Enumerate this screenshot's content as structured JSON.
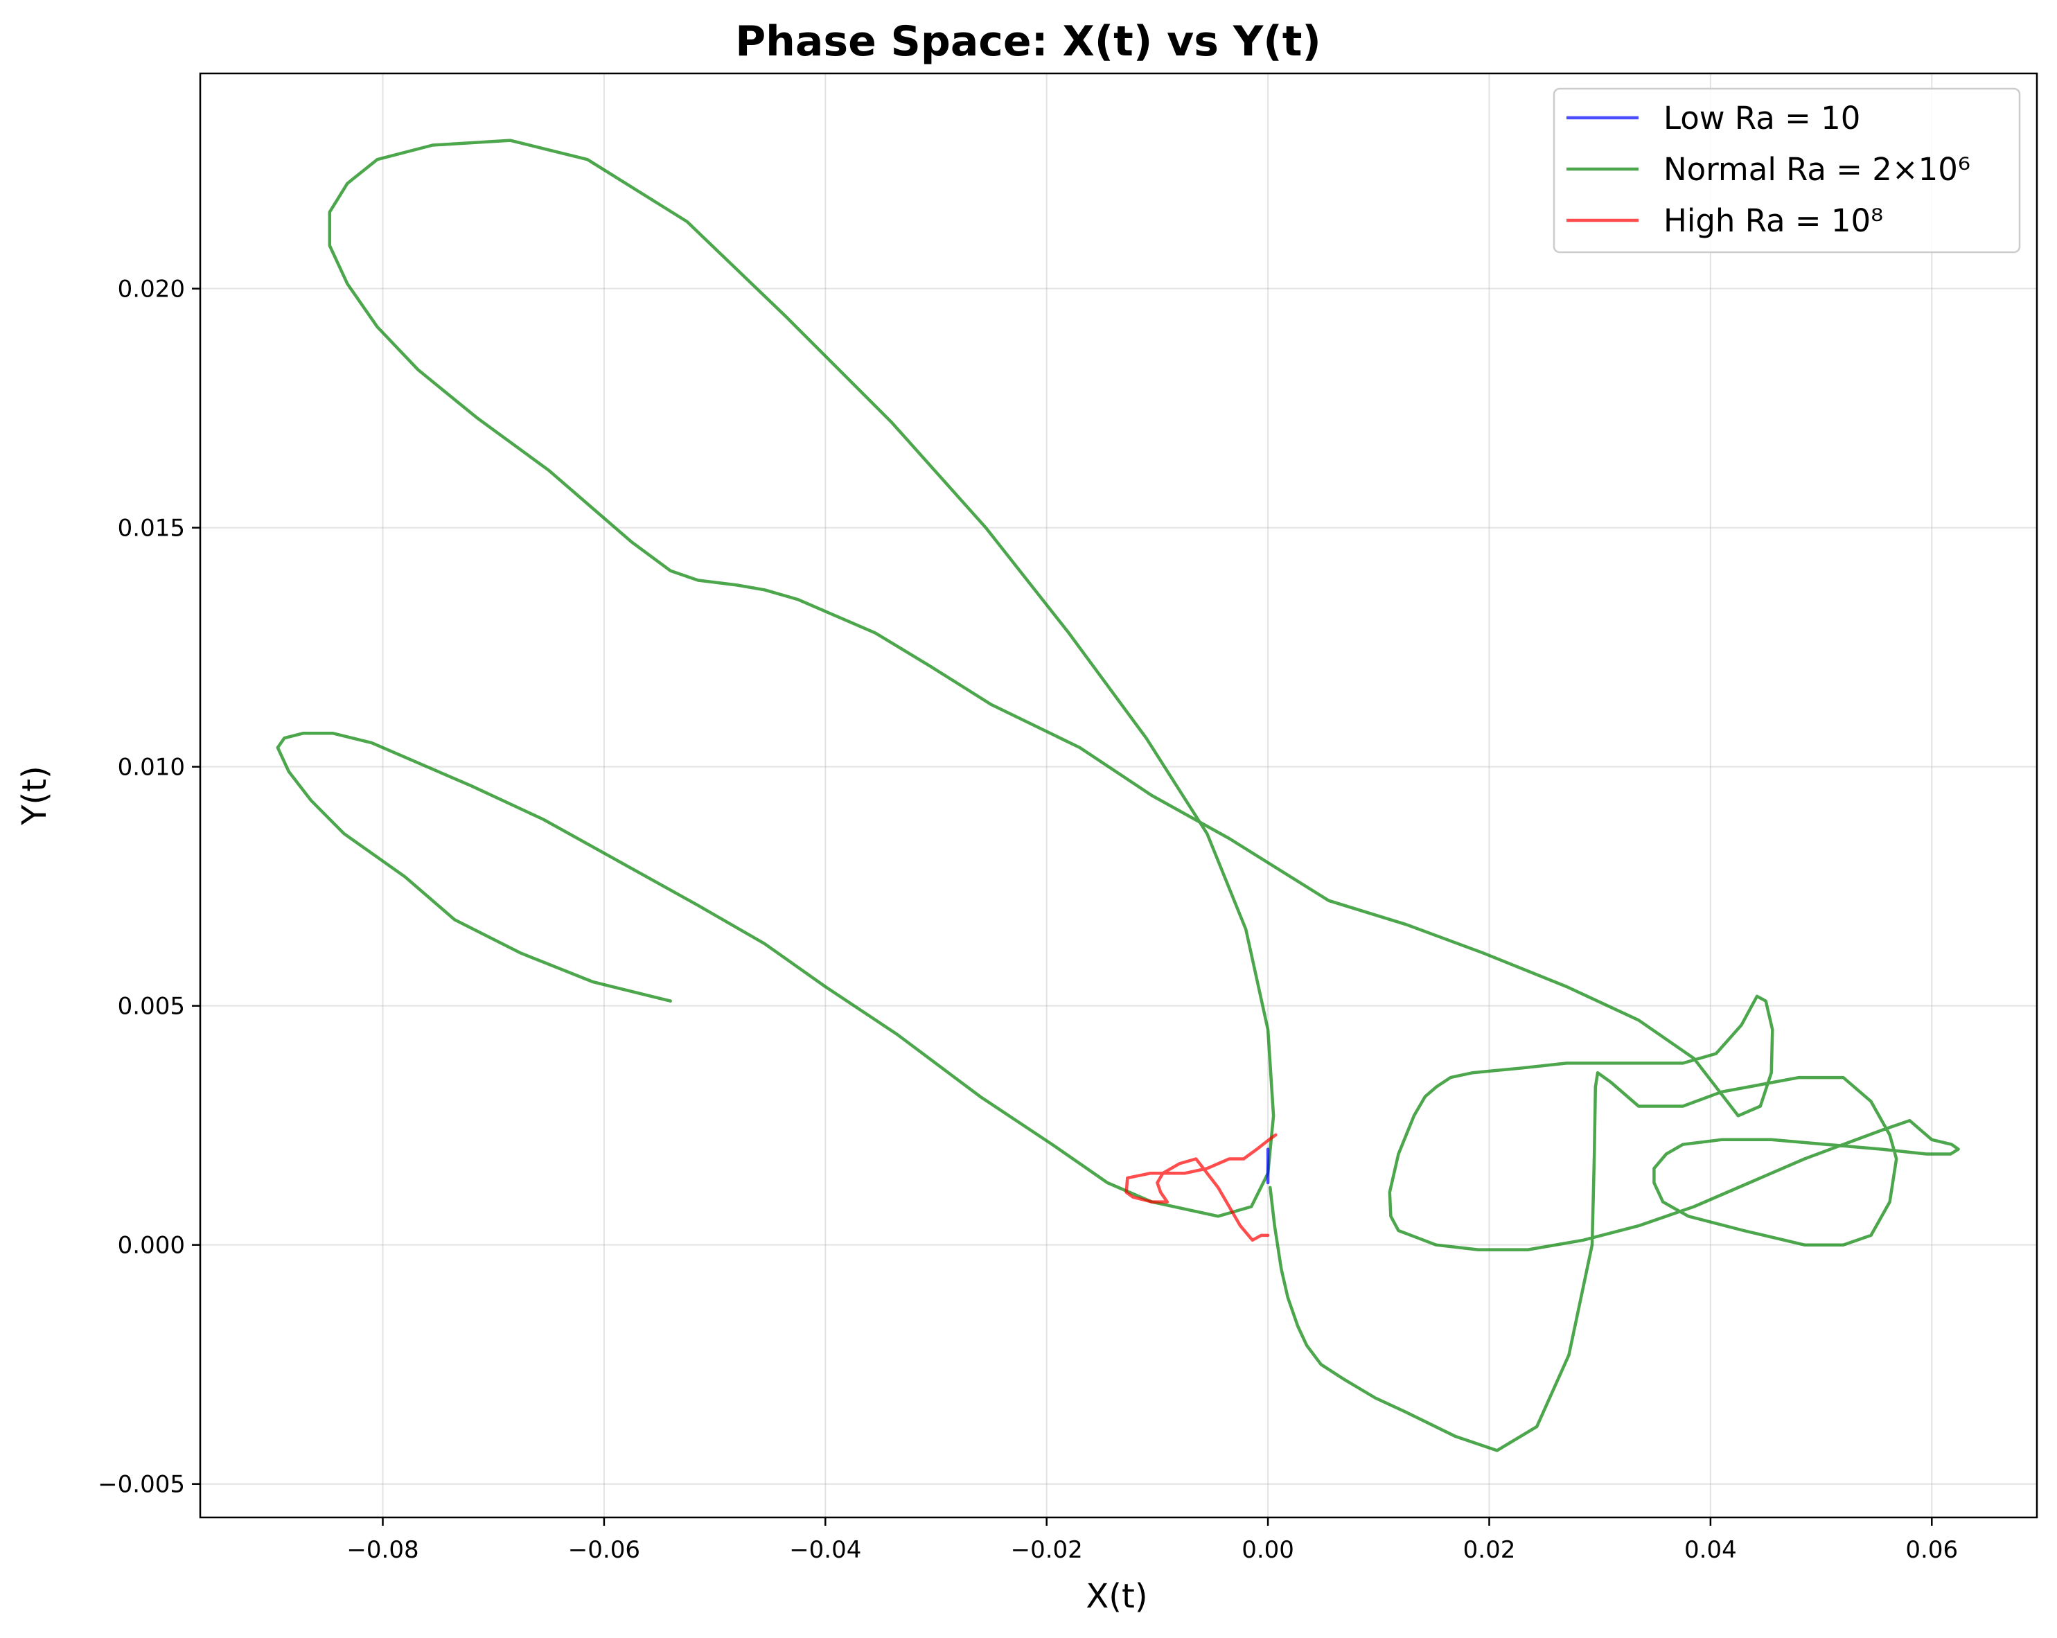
{
  "chart_data": {
    "type": "line",
    "title": "Phase Space: X(t) vs Y(t)",
    "xlabel": "X(t)",
    "ylabel": "Y(t)",
    "xlim": [
      -0.0965,
      0.0695
    ],
    "ylim": [
      -0.0057,
      0.0245
    ],
    "xticks": [
      -0.08,
      -0.06,
      -0.04,
      -0.02,
      0.0,
      0.02,
      0.04,
      0.06
    ],
    "xtick_labels": [
      "−0.08",
      "−0.06",
      "−0.04",
      "−0.02",
      "0.00",
      "0.02",
      "0.04",
      "0.06"
    ],
    "yticks": [
      -0.005,
      0.0,
      0.005,
      0.01,
      0.015,
      0.02
    ],
    "ytick_labels": [
      "−0.005",
      "0.000",
      "0.005",
      "0.010",
      "0.015",
      "0.020"
    ],
    "grid": true,
    "legend_position": "top-right",
    "series": [
      {
        "name": "Low Ra = 10",
        "color": "#0000ff",
        "opacity": 0.7,
        "points": [
          [
            0.0,
            0.002
          ],
          [
            0.0,
            0.0016
          ],
          [
            0.0,
            0.0013
          ]
        ]
      },
      {
        "name": "Normal Ra = 2×10⁶",
        "color": "#008000",
        "opacity": 0.7,
        "points": [
          [
            -0.054,
            0.0051
          ],
          [
            -0.061,
            0.0055
          ],
          [
            -0.0675,
            0.0061
          ],
          [
            -0.0735,
            0.0068
          ],
          [
            -0.078,
            0.0077
          ],
          [
            -0.0835,
            0.0086
          ],
          [
            -0.0865,
            0.0093
          ],
          [
            -0.0885,
            0.0099
          ],
          [
            -0.0895,
            0.0104
          ],
          [
            -0.0889,
            0.0106
          ],
          [
            -0.0872,
            0.0107
          ],
          [
            -0.0845,
            0.0107
          ],
          [
            -0.081,
            0.0105
          ],
          [
            -0.077,
            0.0101
          ],
          [
            -0.072,
            0.0096
          ],
          [
            -0.0655,
            0.0089
          ],
          [
            -0.0585,
            0.008
          ],
          [
            -0.0515,
            0.0071
          ],
          [
            -0.0455,
            0.0063
          ],
          [
            -0.04,
            0.0054
          ],
          [
            -0.0335,
            0.0044
          ],
          [
            -0.026,
            0.0031
          ],
          [
            -0.0195,
            0.0021
          ],
          [
            -0.0145,
            0.0013
          ],
          [
            -0.0105,
            0.0009
          ],
          [
            -0.0045,
            0.0006
          ],
          [
            -0.0015,
            0.0008
          ],
          [
            0.0,
            0.0015
          ],
          [
            0.0005,
            0.0027
          ],
          [
            0.0,
            0.0045
          ],
          [
            -0.002,
            0.0066
          ],
          [
            -0.0055,
            0.0086
          ],
          [
            -0.011,
            0.0106
          ],
          [
            -0.018,
            0.0128
          ],
          [
            -0.0255,
            0.015
          ],
          [
            -0.034,
            0.0172
          ],
          [
            -0.0435,
            0.0194
          ],
          [
            -0.0525,
            0.0214
          ],
          [
            -0.0615,
            0.0227
          ],
          [
            -0.0685,
            0.0231
          ],
          [
            -0.0755,
            0.023
          ],
          [
            -0.0805,
            0.0227
          ],
          [
            -0.0832,
            0.0222
          ],
          [
            -0.0848,
            0.0216
          ],
          [
            -0.0848,
            0.0209
          ],
          [
            -0.0832,
            0.0201
          ],
          [
            -0.0805,
            0.0192
          ],
          [
            -0.0768,
            0.0183
          ],
          [
            -0.0715,
            0.0173
          ],
          [
            -0.065,
            0.0162
          ],
          [
            -0.061,
            0.0154
          ],
          [
            -0.0575,
            0.0147
          ],
          [
            -0.054,
            0.0141
          ],
          [
            -0.0515,
            0.0139
          ],
          [
            -0.048,
            0.0138
          ],
          [
            -0.0455,
            0.0137
          ],
          [
            -0.0425,
            0.0135
          ],
          [
            -0.0395,
            0.0132
          ],
          [
            -0.0355,
            0.0128
          ],
          [
            -0.0305,
            0.0121
          ],
          [
            -0.025,
            0.0113
          ],
          [
            -0.017,
            0.0104
          ],
          [
            -0.0105,
            0.0094
          ],
          [
            -0.0035,
            0.0085
          ],
          [
            0.0055,
            0.0072
          ],
          [
            0.0125,
            0.0067
          ],
          [
            0.0195,
            0.0061
          ],
          [
            0.027,
            0.0054
          ],
          [
            0.0335,
            0.0047
          ],
          [
            0.0385,
            0.0039
          ],
          [
            0.0425,
            0.0027
          ],
          [
            0.0445,
            0.0029
          ],
          [
            0.0455,
            0.0036
          ],
          [
            0.0456,
            0.0045
          ],
          [
            0.045,
            0.0051
          ],
          [
            0.0442,
            0.0052
          ],
          [
            0.0428,
            0.0046
          ],
          [
            0.0405,
            0.004
          ],
          [
            0.0375,
            0.0038
          ],
          [
            0.0325,
            0.0038
          ],
          [
            0.027,
            0.0038
          ],
          [
            0.023,
            0.0037
          ],
          [
            0.0185,
            0.0036
          ],
          [
            0.0165,
            0.0035
          ],
          [
            0.0152,
            0.0033
          ],
          [
            0.0142,
            0.0031
          ],
          [
            0.0132,
            0.0027
          ],
          [
            0.0118,
            0.0019
          ],
          [
            0.011,
            0.0011
          ],
          [
            0.0111,
            0.0006
          ],
          [
            0.0118,
            0.0003
          ],
          [
            0.0152,
            0.0
          ],
          [
            0.019,
            -0.0001
          ],
          [
            0.0235,
            -0.0001
          ],
          [
            0.0285,
            0.0001
          ],
          [
            0.0335,
            0.0004
          ],
          [
            0.0385,
            0.0008
          ],
          [
            0.0435,
            0.0013
          ],
          [
            0.0485,
            0.0018
          ],
          [
            0.052,
            0.0021
          ],
          [
            0.0555,
            0.0024
          ],
          [
            0.058,
            0.0026
          ],
          [
            0.06,
            0.0022
          ],
          [
            0.0618,
            0.0021
          ],
          [
            0.0624,
            0.002
          ],
          [
            0.0617,
            0.0019
          ],
          [
            0.0595,
            0.0019
          ],
          [
            0.0555,
            0.002
          ],
          [
            0.0505,
            0.0021
          ],
          [
            0.0455,
            0.0022
          ],
          [
            0.041,
            0.0022
          ],
          [
            0.0375,
            0.0021
          ],
          [
            0.036,
            0.0019
          ],
          [
            0.0349,
            0.0016
          ],
          [
            0.0349,
            0.0013
          ],
          [
            0.0357,
            0.0009
          ],
          [
            0.038,
            0.0006
          ],
          [
            0.043,
            0.0003
          ],
          [
            0.0485,
            0.0
          ],
          [
            0.052,
            0.0
          ],
          [
            0.0545,
            0.0002
          ],
          [
            0.0562,
            0.0009
          ],
          [
            0.0568,
            0.0018
          ],
          [
            0.0562,
            0.0023
          ],
          [
            0.0545,
            0.003
          ],
          [
            0.052,
            0.0035
          ],
          [
            0.048,
            0.0035
          ],
          [
            0.041,
            0.0032
          ],
          [
            0.0375,
            0.0029
          ],
          [
            0.0335,
            0.0029
          ],
          [
            0.031,
            0.0034
          ],
          [
            0.0298,
            0.0036
          ],
          [
            0.0296,
            0.0033
          ],
          [
            0.0295,
            0.0019
          ],
          [
            0.0293,
            0.0
          ],
          [
            0.0272,
            -0.0023
          ],
          [
            0.0243,
            -0.0038
          ],
          [
            0.0207,
            -0.0043
          ],
          [
            0.0169,
            -0.004
          ],
          [
            0.0125,
            -0.0035
          ],
          [
            0.0097,
            -0.0032
          ],
          [
            0.0068,
            -0.0028
          ],
          [
            0.0048,
            -0.0025
          ],
          [
            0.0035,
            -0.0021
          ],
          [
            0.0027,
            -0.0017
          ],
          [
            0.0018,
            -0.0011
          ],
          [
            0.0012,
            -0.0005
          ],
          [
            0.0006,
            0.0004
          ],
          [
            0.0002,
            0.0012
          ]
        ]
      },
      {
        "name": "High Ra = 10⁸",
        "color": "#ff0000",
        "opacity": 0.7,
        "points": [
          [
            0.0,
            0.0002
          ],
          [
            -0.0006,
            0.0002
          ],
          [
            -0.0014,
            0.0001
          ],
          [
            -0.0025,
            0.0004
          ],
          [
            -0.0045,
            0.0012
          ],
          [
            -0.0065,
            0.0018
          ],
          [
            -0.008,
            0.0017
          ],
          [
            -0.0095,
            0.0015
          ],
          [
            -0.01,
            0.0013
          ],
          [
            -0.0097,
            0.0011
          ],
          [
            -0.0091,
            0.0009
          ],
          [
            -0.0105,
            0.0009
          ],
          [
            -0.0122,
            0.001
          ],
          [
            -0.0128,
            0.0011
          ],
          [
            -0.0127,
            0.0014
          ],
          [
            -0.0106,
            0.0015
          ],
          [
            -0.0075,
            0.0015
          ],
          [
            -0.0055,
            0.0016
          ],
          [
            -0.0035,
            0.0018
          ],
          [
            -0.0022,
            0.0018
          ],
          [
            -0.001,
            0.002
          ],
          [
            0.0001,
            0.0022
          ],
          [
            0.0007,
            0.0023
          ]
        ]
      }
    ]
  }
}
